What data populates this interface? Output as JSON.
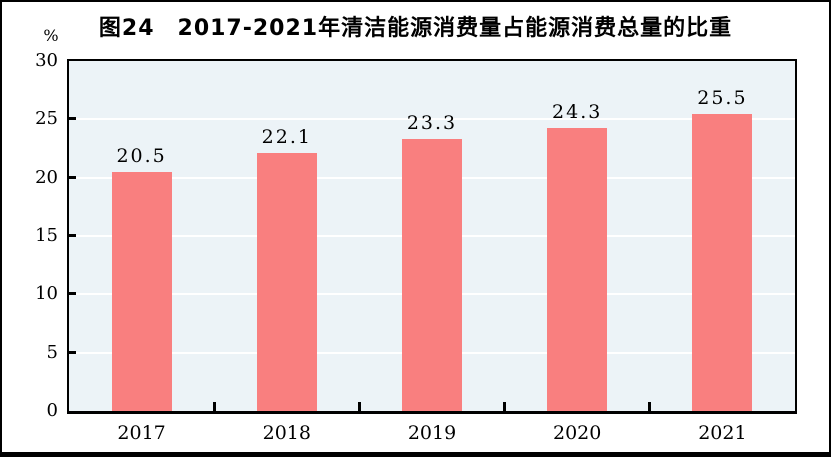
{
  "header": {
    "figure_number": "图24",
    "title": "图24　2017-2021年清洁能源消费量占能源消费总量的比重"
  },
  "chart_data": {
    "type": "bar",
    "title": "图24　2017-2021年清洁能源消费量占能源消费总量的比重",
    "unit": "%",
    "categories": [
      "2017",
      "2018",
      "2019",
      "2020",
      "2021"
    ],
    "values": [
      20.5,
      22.1,
      23.3,
      24.3,
      25.5
    ],
    "value_labels": [
      "20.5",
      "22.1",
      "23.3",
      "24.3",
      "25.5"
    ],
    "xlabel": "",
    "ylabel": "%",
    "ylim": [
      0,
      30
    ],
    "yticks": [
      0,
      5,
      10,
      15,
      20,
      25,
      30
    ],
    "grid": "horizontal",
    "legend_position": "none",
    "colors": {
      "bar": "#f97f7f",
      "plot_background": "#ecf3f7",
      "gridline": "#ffffff",
      "axis": "#000000",
      "text": "#000000",
      "page_background": "#ffffff"
    }
  }
}
